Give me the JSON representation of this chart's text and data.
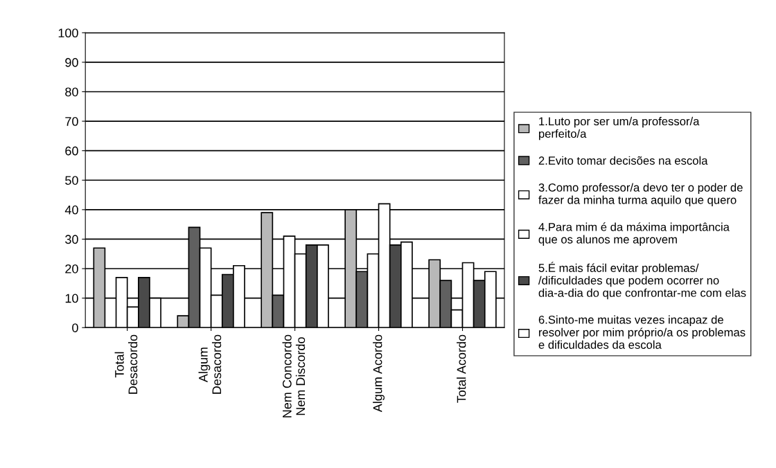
{
  "chart_data": {
    "type": "bar",
    "categories": [
      "Total\nDesacordo",
      "Algum\nDesacordo",
      "Nem Concordo\nNem Discordo",
      "Algum Acordo",
      "Total Acordo"
    ],
    "series": [
      {
        "name": "1.Luto por ser um/a professor/a perfeito/a",
        "color": "#b8b8b8",
        "values": [
          27,
          4,
          39,
          40,
          23
        ]
      },
      {
        "name": "2.Evito tomar decisões na escola",
        "color": "#606060",
        "values": [
          null,
          34,
          11,
          19,
          16
        ]
      },
      {
        "name": "3.Como professor/a devo ter o poder de fazer da minha turma aquilo que quero",
        "color": "#ffffff",
        "values": [
          17,
          27,
          31,
          25,
          6
        ]
      },
      {
        "name": "4.Para mim é da máxima importância que os alunos me aprovem",
        "color": "#ffffff",
        "values": [
          7,
          11,
          25,
          42,
          22
        ]
      },
      {
        "name": "5.É mais fácil evitar problemas/ /dificuldades que podem ocorrer no dia-a-dia do que confrontar-me com elas",
        "color": "#4a4a4a",
        "values": [
          17,
          18,
          28,
          28,
          16
        ]
      },
      {
        "name": "6.Sinto-me muitas vezes incapaz de resolver por mim próprio/a os problemas e dificuldades da escola",
        "color": "#ffffff",
        "values": [
          10,
          21,
          28,
          29,
          19
        ]
      }
    ],
    "ylim": [
      0,
      100
    ],
    "yticks": [
      0,
      10,
      20,
      30,
      40,
      50,
      60,
      70,
      80,
      90,
      100
    ],
    "grid": "y",
    "legend": "right"
  }
}
